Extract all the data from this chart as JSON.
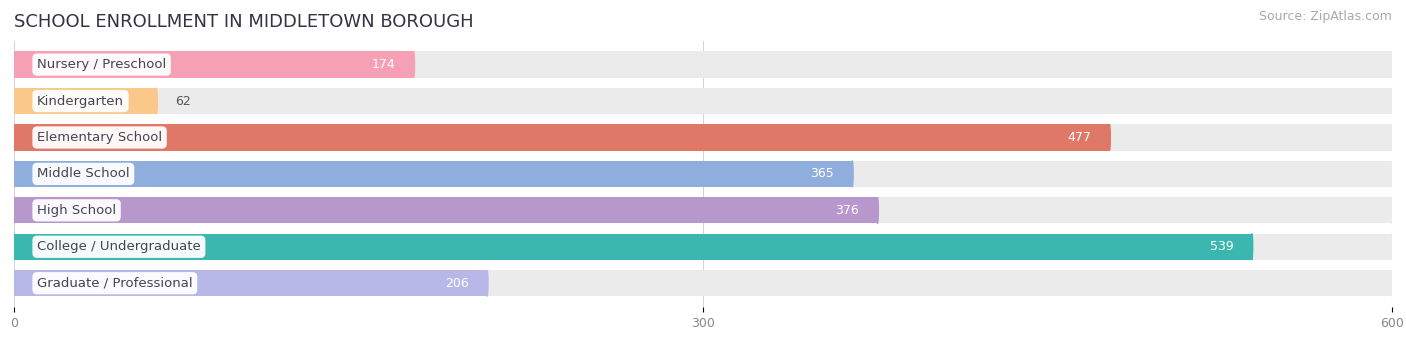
{
  "title": "SCHOOL ENROLLMENT IN MIDDLETOWN BOROUGH",
  "source": "Source: ZipAtlas.com",
  "categories": [
    "Nursery / Preschool",
    "Kindergarten",
    "Elementary School",
    "Middle School",
    "High School",
    "College / Undergraduate",
    "Graduate / Professional"
  ],
  "values": [
    174,
    62,
    477,
    365,
    376,
    539,
    206
  ],
  "bar_colors": [
    "#f5a0b5",
    "#f9c88a",
    "#e07868",
    "#90aedd",
    "#b898cc",
    "#3ab8b0",
    "#b8b8e8"
  ],
  "bar_bg_color": "#ebebeb",
  "xlim": [
    0,
    600
  ],
  "xticks": [
    0,
    300,
    600
  ],
  "value_label_color_threshold": 100,
  "title_fontsize": 13,
  "source_fontsize": 9,
  "label_fontsize": 9.5,
  "value_fontsize": 9,
  "background_color": "#ffffff",
  "label_text_color": "#444455",
  "title_color": "#333344"
}
